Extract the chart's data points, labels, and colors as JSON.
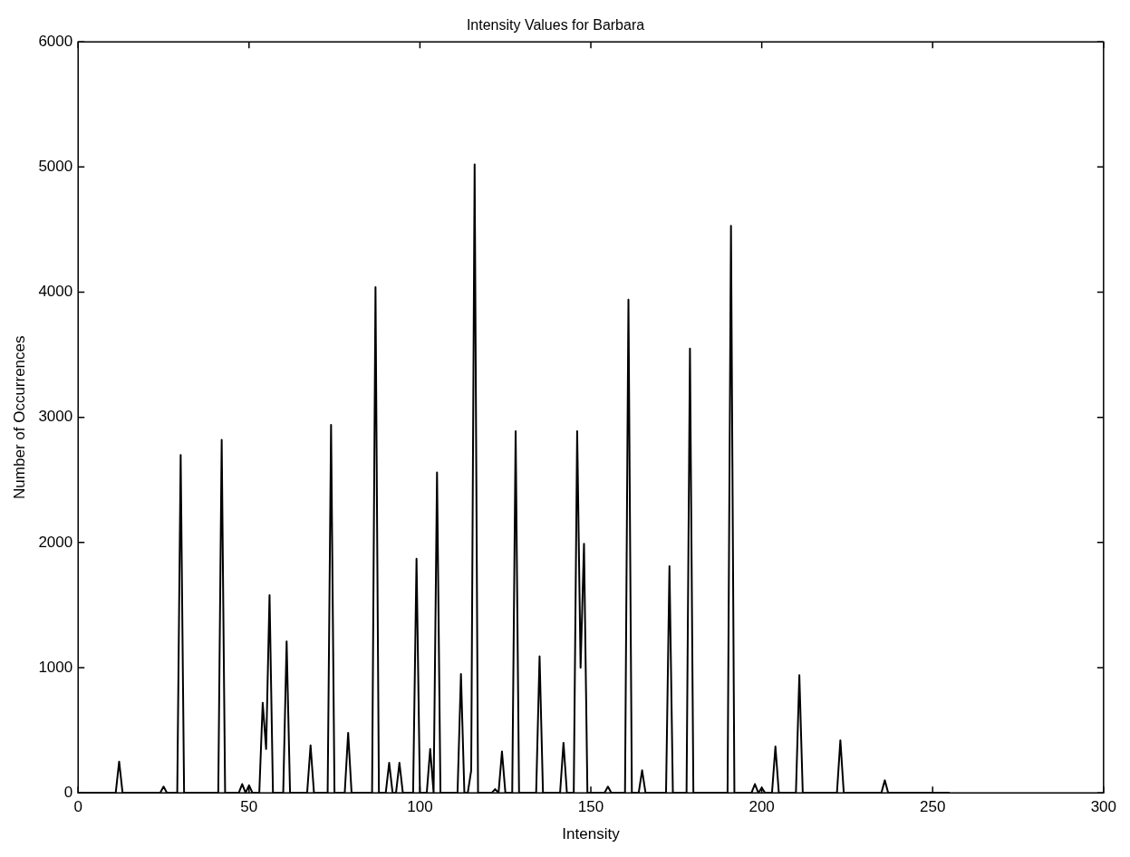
{
  "chart_data": {
    "type": "line",
    "title": "Intensity Values for Barbara",
    "xlabel": "Intensity",
    "ylabel": "Number of Occurrences",
    "x": [
      0,
      11,
      12,
      13,
      24,
      25,
      26,
      29,
      30,
      31,
      41,
      42,
      43,
      47,
      48,
      49,
      50,
      51,
      53,
      54,
      55,
      56,
      57,
      60,
      61,
      62,
      67,
      68,
      69,
      73,
      74,
      75,
      78,
      79,
      80,
      86,
      87,
      88,
      90,
      91,
      92,
      93,
      94,
      95,
      98,
      99,
      100,
      102,
      103,
      104,
      105,
      106,
      111,
      112,
      113,
      114,
      115,
      116,
      117,
      121,
      122,
      123,
      124,
      125,
      127,
      128,
      129,
      134,
      135,
      136,
      141,
      142,
      143,
      145,
      146,
      147,
      148,
      149,
      154,
      155,
      156,
      160,
      161,
      162,
      164,
      165,
      166,
      172,
      173,
      174,
      178,
      179,
      180,
      190,
      191,
      192,
      197,
      198,
      199,
      200,
      201,
      203,
      204,
      205,
      210,
      211,
      212,
      222,
      223,
      224,
      235,
      236,
      237,
      255
    ],
    "series": [
      {
        "color": "#000000",
        "values": [
          0,
          0,
          250,
          0,
          0,
          50,
          0,
          0,
          2700,
          0,
          0,
          2820,
          0,
          0,
          70,
          0,
          60,
          0,
          0,
          720,
          350,
          1580,
          0,
          0,
          1210,
          0,
          0,
          380,
          0,
          0,
          2940,
          0,
          0,
          480,
          0,
          0,
          4040,
          0,
          0,
          240,
          0,
          0,
          240,
          0,
          0,
          1870,
          0,
          0,
          350,
          0,
          2560,
          0,
          0,
          950,
          0,
          0,
          180,
          5020,
          0,
          0,
          30,
          0,
          330,
          0,
          0,
          2890,
          0,
          0,
          1090,
          0,
          0,
          400,
          0,
          0,
          2890,
          1000,
          1990,
          0,
          0,
          50,
          0,
          0,
          3940,
          0,
          0,
          180,
          0,
          0,
          1810,
          0,
          0,
          3550,
          0,
          0,
          4530,
          0,
          0,
          70,
          0,
          40,
          0,
          0,
          370,
          0,
          0,
          940,
          0,
          0,
          420,
          0,
          0,
          100,
          0,
          0
        ]
      }
    ],
    "xlim": [
      0,
      300
    ],
    "xticks": [
      0,
      50,
      100,
      150,
      200,
      250,
      300
    ],
    "ylim": [
      0,
      6000
    ],
    "yticks": [
      0,
      1000,
      2000,
      3000,
      4000,
      5000,
      6000
    ],
    "grid": false,
    "legend": false,
    "marker": "none",
    "line_style": "solid"
  }
}
